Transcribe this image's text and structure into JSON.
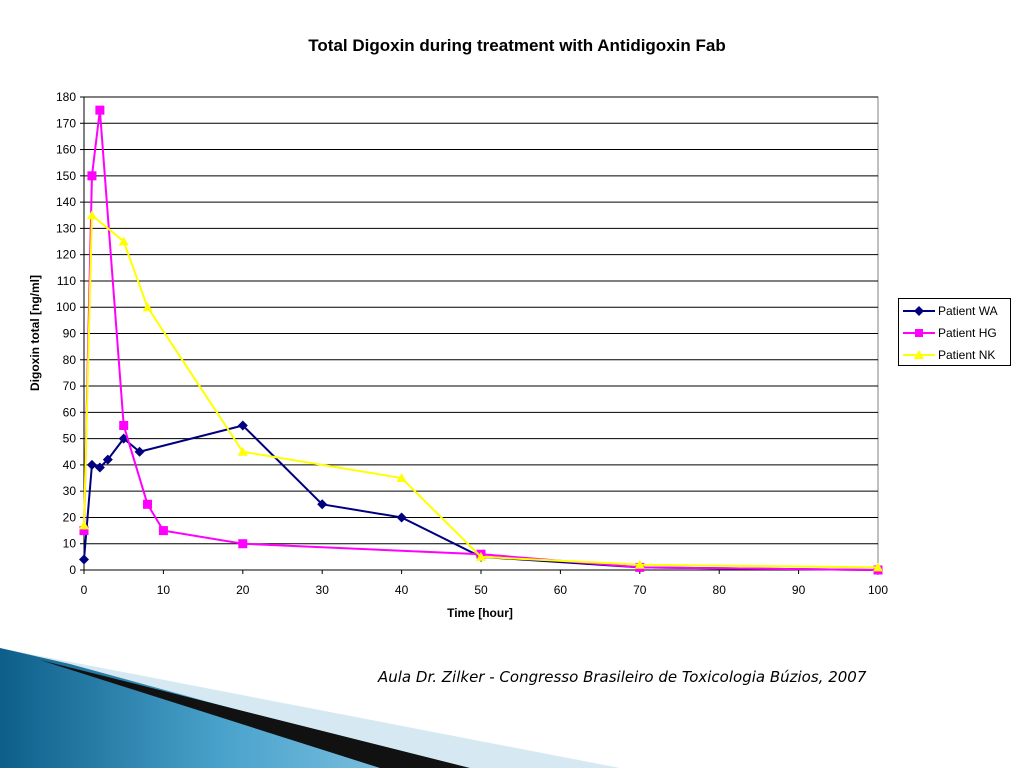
{
  "chart_data": {
    "type": "line",
    "title": "Total Digoxin during treatment with Antidigoxin Fab",
    "xlabel": "Time [hour]",
    "ylabel": "Digoxin total [ng/ml]",
    "xlim": [
      0,
      100
    ],
    "ylim": [
      0,
      180
    ],
    "x_ticks": [
      0,
      10,
      20,
      30,
      40,
      50,
      60,
      70,
      80,
      90,
      100
    ],
    "y_ticks": [
      0,
      10,
      20,
      30,
      40,
      50,
      60,
      70,
      80,
      90,
      100,
      110,
      120,
      130,
      140,
      150,
      160,
      170,
      180
    ],
    "grid": "horizontal",
    "legend_position": "right",
    "series": [
      {
        "name": "Patient WA",
        "color": "#000080",
        "marker": "diamond",
        "points": [
          [
            0,
            4
          ],
          [
            1,
            40
          ],
          [
            2,
            39
          ],
          [
            3,
            42
          ],
          [
            5,
            50
          ],
          [
            7,
            45
          ],
          [
            20,
            55
          ],
          [
            30,
            25
          ],
          [
            40,
            20
          ],
          [
            50,
            5
          ],
          [
            70,
            1
          ],
          [
            100,
            0
          ]
        ]
      },
      {
        "name": "Patient HG",
        "color": "#FF00FF",
        "marker": "square",
        "points": [
          [
            0,
            15
          ],
          [
            1,
            150
          ],
          [
            2,
            175
          ],
          [
            5,
            55
          ],
          [
            8,
            25
          ],
          [
            10,
            15
          ],
          [
            20,
            10
          ],
          [
            50,
            6
          ],
          [
            70,
            1
          ],
          [
            100,
            0
          ]
        ]
      },
      {
        "name": "Patient NK",
        "color": "#FFFF00",
        "marker": "triangle",
        "points": [
          [
            0,
            17
          ],
          [
            1,
            135
          ],
          [
            5,
            125
          ],
          [
            8,
            100
          ],
          [
            20,
            45
          ],
          [
            40,
            35
          ],
          [
            50,
            5
          ],
          [
            70,
            2
          ],
          [
            100,
            1
          ]
        ]
      }
    ]
  },
  "caption": "Aula Dr. Zilker - Congresso Brasileiro de Toxicologia Búzios, 2007"
}
